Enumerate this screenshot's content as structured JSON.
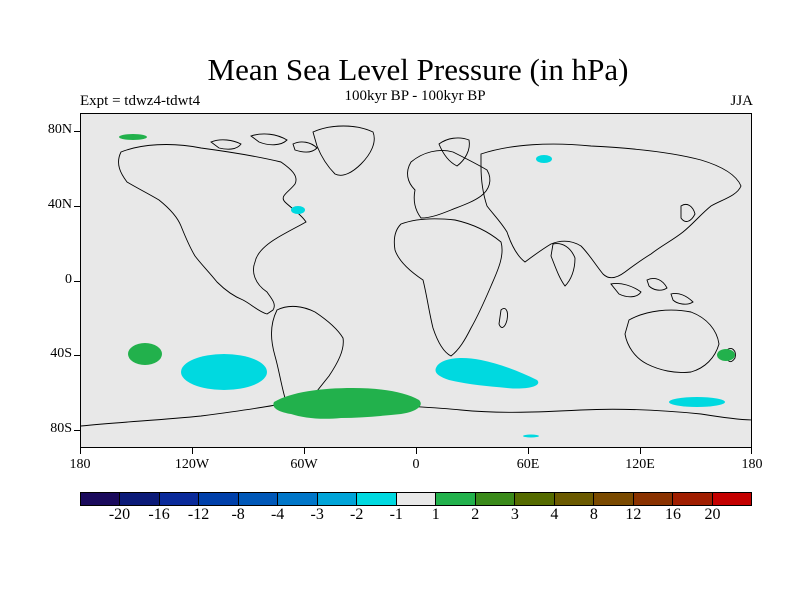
{
  "header": {
    "title": "Mean Sea Level Pressure (in hPa)",
    "subtitle": "100kyr BP - 100kyr BP",
    "left_label": "Expt = tdwz4-tdwt4",
    "right_label": "JJA"
  },
  "map": {
    "projection": "cylindrical-equidistant",
    "background_color": "#e8e8e8",
    "lat_ticks": [
      "80N",
      "40N",
      "0",
      "40S",
      "80S"
    ],
    "lon_ticks": [
      "180",
      "120W",
      "60W",
      "0",
      "60E",
      "120E",
      "180"
    ],
    "anomaly_regions": [
      {
        "name": "arctic-north-pacific",
        "level": "1",
        "color": "#22b14c"
      },
      {
        "name": "arctic-siberia",
        "level": "-1",
        "color": "#00d9e0"
      },
      {
        "name": "north-atlantic",
        "level": "-1",
        "color": "#00d9e0"
      },
      {
        "name": "south-pacific-west",
        "level": "1",
        "color": "#22b14c"
      },
      {
        "name": "south-pacific-east",
        "level": "-1",
        "color": "#00d9e0"
      },
      {
        "name": "south-atlantic-weddell",
        "level": "1",
        "color": "#22b14c"
      },
      {
        "name": "south-indian",
        "level": "-1",
        "color": "#00d9e0"
      },
      {
        "name": "new-zealand",
        "level": "1",
        "color": "#22b14c"
      },
      {
        "name": "southern-ocean-ross",
        "level": "-1",
        "color": "#00d9e0"
      },
      {
        "name": "antarctic-small",
        "level": "-1",
        "color": "#00d9e0"
      }
    ]
  },
  "colorbar": {
    "colors": [
      "#1a0a5c",
      "#0b1a78",
      "#0a2a9a",
      "#0040aa",
      "#0058b8",
      "#0076c8",
      "#00a4d8",
      "#00d9e0",
      "#e8e8e8",
      "#22b14c",
      "#3a8a1a",
      "#556b00",
      "#6b5a00",
      "#7a4a00",
      "#8a3200",
      "#a01e00",
      "#c40000"
    ],
    "labels": [
      "-20",
      "-16",
      "-12",
      "-8",
      "-4",
      "-3",
      "-2",
      "-1",
      "1",
      "2",
      "3",
      "4",
      "8",
      "12",
      "16",
      "20"
    ]
  }
}
